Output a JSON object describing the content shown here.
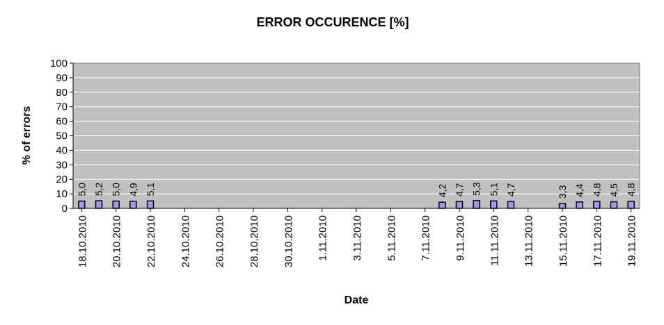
{
  "chart_data": {
    "type": "bar",
    "title": "ERROR OCCURENCE [%]",
    "xlabel": "Date",
    "ylabel": "% of errors",
    "ylim": [
      0,
      100
    ],
    "yticks": [
      "0",
      "10",
      "20",
      "30",
      "40",
      "50",
      "60",
      "70",
      "80",
      "90",
      "100"
    ],
    "grid": true,
    "legend": "none",
    "colors": {
      "plot_bg": "#c0c0c0",
      "bar": "#9999ff",
      "grid": "#ffffff"
    },
    "xticks": [
      "18.10.2010",
      "20.10.2010",
      "22.10.2010",
      "24.10.2010",
      "26.10.2010",
      "28.10.2010",
      "30.10.2010",
      "1.11.2010",
      "3.11.2010",
      "5.11.2010",
      "7.11.2010",
      "9.11.2010",
      "11.11.2010",
      "13.11.2010",
      "15.11.2010",
      "17.11.2010",
      "19.11.2010"
    ],
    "x": [
      "18.10.2010",
      "19.10.2010",
      "20.10.2010",
      "21.10.2010",
      "22.10.2010",
      "8.11.2010",
      "9.11.2010",
      "10.11.2010",
      "11.11.2010",
      "12.11.2010",
      "15.11.2010",
      "16.11.2010",
      "17.11.2010",
      "18.11.2010",
      "19.11.2010"
    ],
    "values": [
      5.0,
      5.2,
      5.0,
      4.9,
      5.1,
      4.2,
      4.7,
      5.3,
      5.1,
      4.7,
      3.3,
      4.4,
      4.8,
      4.5,
      4.8
    ],
    "data_labels": [
      "5,0",
      "5,2",
      "5,0",
      "4,9",
      "5,1",
      "4,2",
      "4,7",
      "5,3",
      "5,1",
      "4,7",
      "3,3",
      "4,4",
      "4,8",
      "4,5",
      "4,8"
    ]
  }
}
